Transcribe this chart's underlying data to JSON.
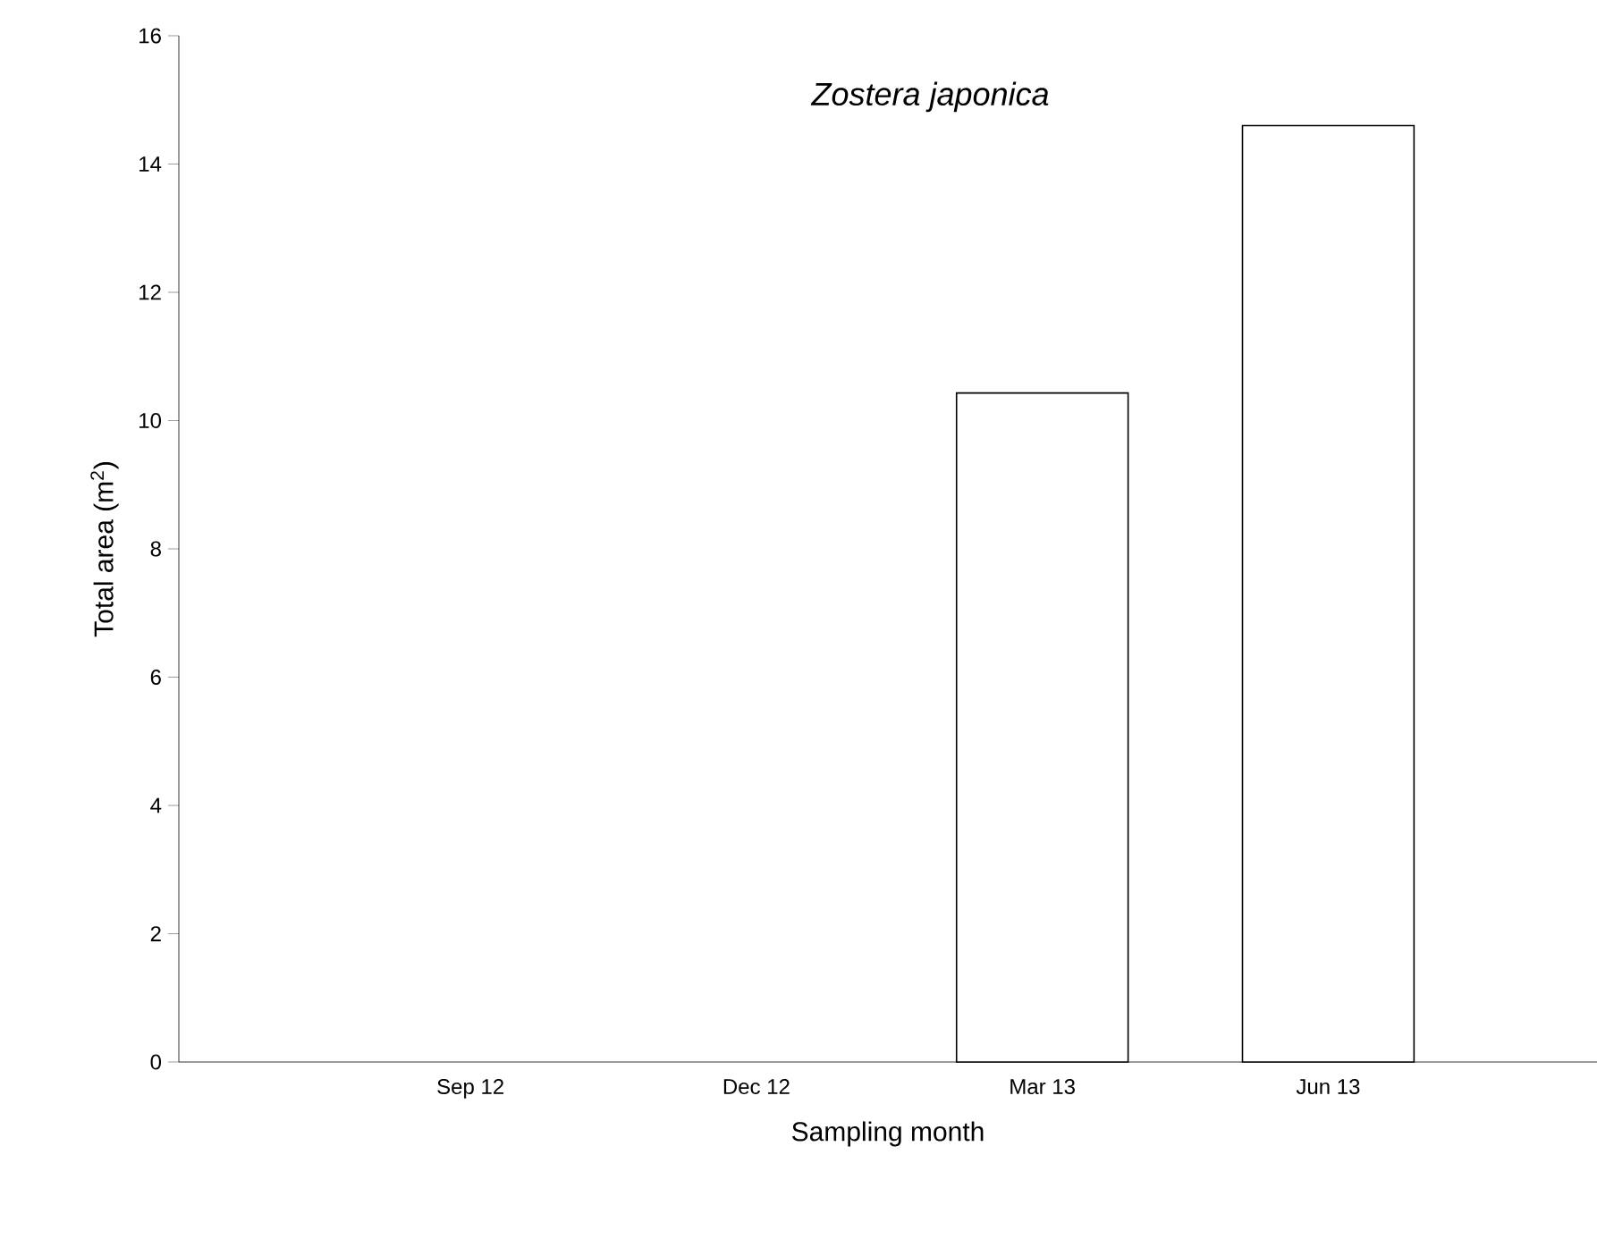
{
  "chart_data": {
    "type": "bar",
    "title": "Zostera japonica",
    "xlabel": "Sampling month",
    "ylabel": "Total area (m$^{2}$)",
    "categories": [
      "Sep 12",
      "Dec 12",
      "Mar 13",
      "Jun 13"
    ],
    "values": [
      0,
      0,
      10.43,
      14.6
    ],
    "color": "#ffffff",
    "ylim": [
      0,
      16
    ],
    "yticks": [
      0,
      2,
      4,
      6,
      8,
      10,
      12,
      14,
      16
    ]
  }
}
